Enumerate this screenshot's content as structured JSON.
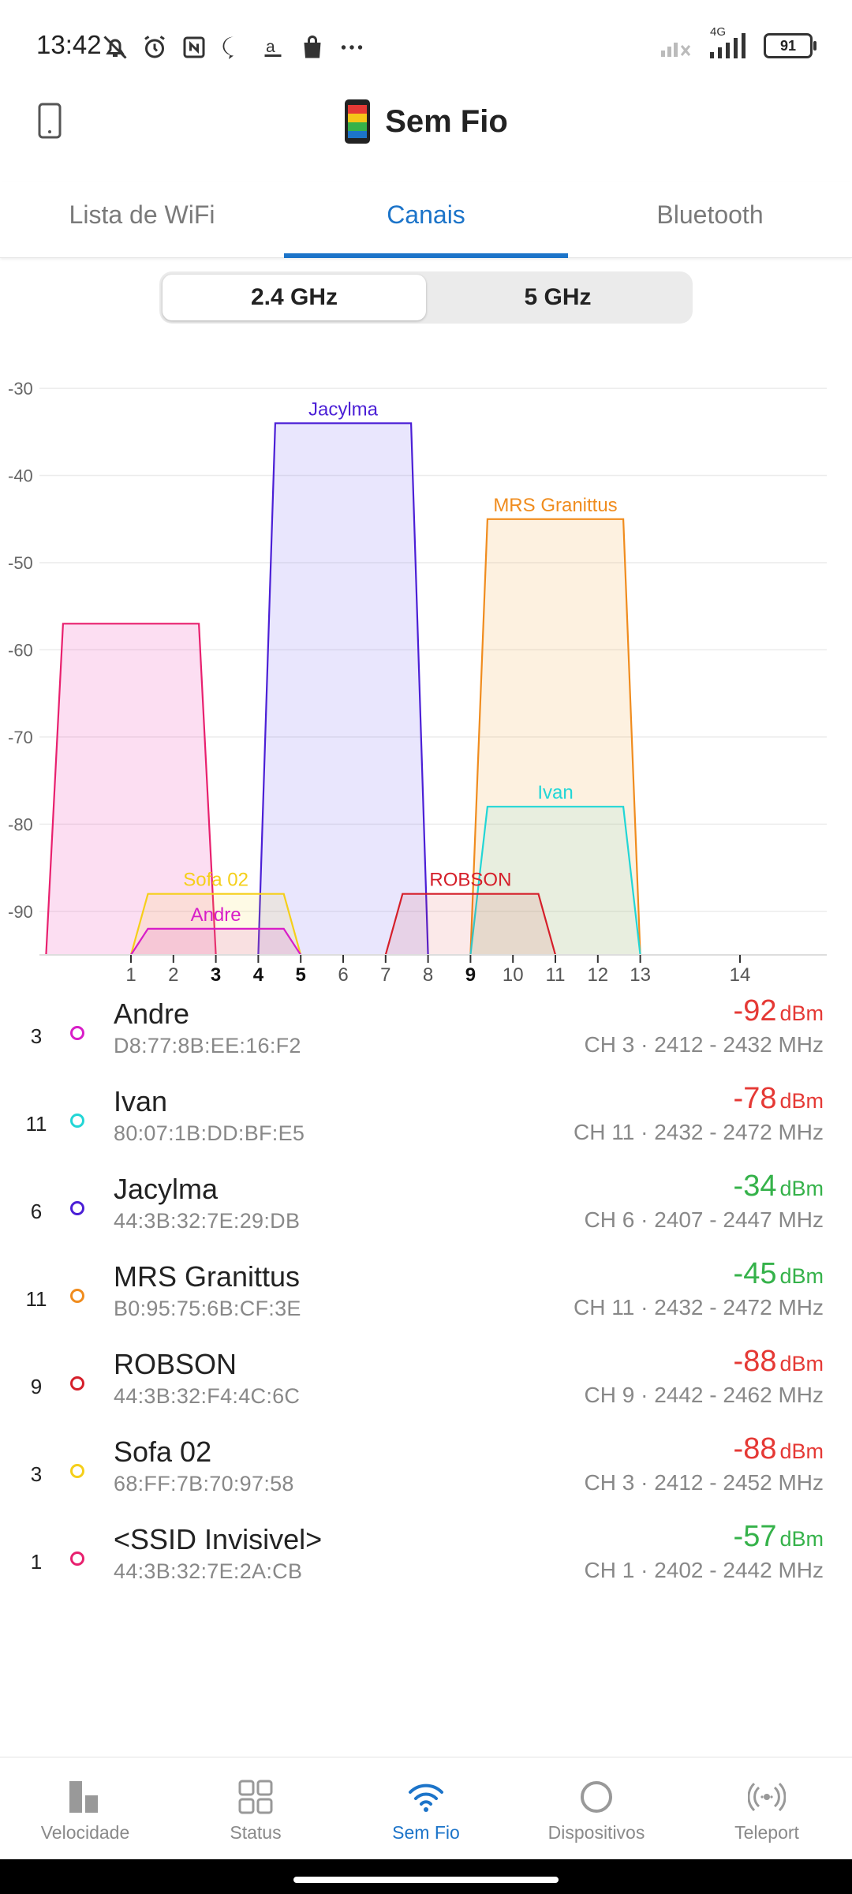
{
  "status_bar": {
    "time": "13:42",
    "icons": [
      "muted-bell-icon",
      "alarm-icon",
      "nfc-icon",
      "chat-icon",
      "amazon-icon",
      "shopping-bag-icon",
      "more-dots-icon"
    ],
    "network": "4G",
    "battery": "91"
  },
  "header": {
    "title": "Sem Fio"
  },
  "tabs": [
    {
      "label": "Lista de WiFi",
      "active": false
    },
    {
      "label": "Canais",
      "active": true
    },
    {
      "label": "Bluetooth",
      "active": false
    }
  ],
  "band_toggle": {
    "options": [
      "2.4 GHz",
      "5 GHz"
    ],
    "selected": "2.4 GHz"
  },
  "chart_data": {
    "type": "area",
    "y_ticks": [
      -30,
      -40,
      -50,
      -60,
      -70,
      -80,
      -90
    ],
    "ylim": [
      -95,
      -28
    ],
    "x_ticks": [
      "1",
      "2",
      "3",
      "4",
      "5",
      "6",
      "7",
      "8",
      "9",
      "10",
      "11",
      "12",
      "13",
      "14"
    ],
    "bold_x_ticks": [
      "3",
      "4",
      "5",
      "9"
    ],
    "grid": true,
    "series": [
      {
        "name": "Jacylma",
        "color": "#4b1fd6",
        "fill": "rgba(120,100,240,0.16)",
        "start_ch": 4,
        "end_ch": 8,
        "dbm": -34
      },
      {
        "name": "MRS Granittus",
        "color": "#f08c1e",
        "fill": "rgba(245,170,70,0.17)",
        "start_ch": 9,
        "end_ch": 13,
        "dbm": -45
      },
      {
        "name": "",
        "color": "#e8206e",
        "fill": "rgba(235,60,180,0.17)",
        "start_ch": -1,
        "end_ch": 3,
        "dbm": -57
      },
      {
        "name": "Ivan",
        "color": "#22d6d6",
        "fill": "rgba(80,220,220,0.12)",
        "start_ch": 9,
        "end_ch": 13,
        "dbm": -78
      },
      {
        "name": "Sofa 02",
        "color": "#f5cf1a",
        "fill": "rgba(245,210,40,0.12)",
        "start_ch": 1,
        "end_ch": 5,
        "dbm": -88
      },
      {
        "name": "ROBSON",
        "color": "#d51f2a",
        "fill": "rgba(220,40,40,0.10)",
        "start_ch": 7,
        "end_ch": 11,
        "dbm": -88
      },
      {
        "name": "Andre",
        "color": "#d81ec8",
        "fill": "rgba(210,40,200,0.12)",
        "start_ch": 1,
        "end_ch": 5,
        "dbm": -92
      }
    ]
  },
  "networks": [
    {
      "channel": "3",
      "ssid": "Andre",
      "mac": "D8:77:8B:EE:16:F2",
      "signal": "-92",
      "unit": "dBm",
      "quality": "red",
      "info": "CH 3 · 2412 - 2432 MHz",
      "color": "#d81ec8"
    },
    {
      "channel": "11",
      "ssid": "Ivan",
      "mac": "80:07:1B:DD:BF:E5",
      "signal": "-78",
      "unit": "dBm",
      "quality": "red",
      "info": "CH 11 · 2432 - 2472 MHz",
      "color": "#22d6d6"
    },
    {
      "channel": "6",
      "ssid": "Jacylma",
      "mac": "44:3B:32:7E:29:DB",
      "signal": "-34",
      "unit": "dBm",
      "quality": "green",
      "info": "CH 6 · 2407 - 2447 MHz",
      "color": "#4b1fd6"
    },
    {
      "channel": "11",
      "ssid": "MRS Granittus",
      "mac": "B0:95:75:6B:CF:3E",
      "signal": "-45",
      "unit": "dBm",
      "quality": "green",
      "info": "CH 11 · 2432 - 2472 MHz",
      "color": "#f08c1e"
    },
    {
      "channel": "9",
      "ssid": "ROBSON",
      "mac": "44:3B:32:F4:4C:6C",
      "signal": "-88",
      "unit": "dBm",
      "quality": "red",
      "info": "CH 9 · 2442 - 2462 MHz",
      "color": "#d51f2a"
    },
    {
      "channel": "3",
      "ssid": "Sofa 02",
      "mac": "68:FF:7B:70:97:58",
      "signal": "-88",
      "unit": "dBm",
      "quality": "red",
      "info": "CH 3 · 2412 - 2452 MHz",
      "color": "#f5cf1a"
    },
    {
      "channel": "1",
      "ssid": "<SSID Invisivel>",
      "mac": "44:3B:32:7E:2A:CB",
      "signal": "-57",
      "unit": "dBm",
      "quality": "green",
      "info": "CH 1 · 2402 - 2442 MHz",
      "color": "#e8206e"
    }
  ],
  "bottom_nav": [
    {
      "label": "Velocidade",
      "icon": "speed-bars-icon",
      "active": false
    },
    {
      "label": "Status",
      "icon": "grid-icon",
      "active": false
    },
    {
      "label": "Sem Fio",
      "icon": "wifi-icon",
      "active": true
    },
    {
      "label": "Dispositivos",
      "icon": "circle-icon",
      "active": false
    },
    {
      "label": "Teleport",
      "icon": "teleport-icon",
      "active": false
    }
  ],
  "colors": {
    "accent": "#1c74c9",
    "good": "#35b24a",
    "bad": "#e53935"
  }
}
